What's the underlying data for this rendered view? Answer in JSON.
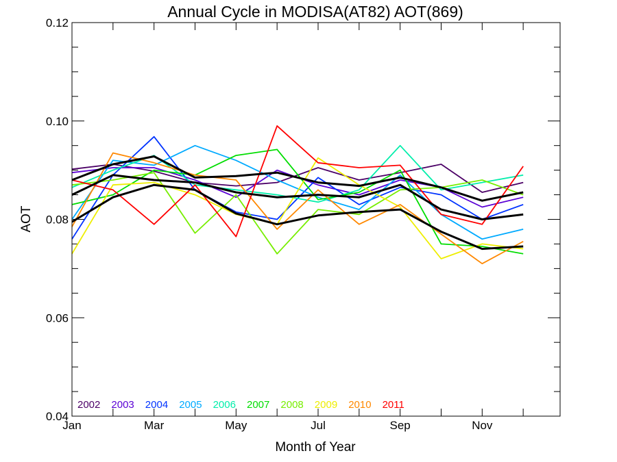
{
  "chart_data": {
    "type": "line",
    "title": "Annual Cycle in MODISA(AT82) AOT(869)",
    "xlabel": "Month of Year",
    "ylabel": "AOT",
    "xlim": [
      1,
      12.9
    ],
    "ylim": [
      0.04,
      0.12
    ],
    "x_tick_labels": [
      {
        "x": 1,
        "label": "Jan"
      },
      {
        "x": 3,
        "label": "Mar"
      },
      {
        "x": 5,
        "label": "May"
      },
      {
        "x": 7,
        "label": "Jul"
      },
      {
        "x": 9,
        "label": "Sep"
      },
      {
        "x": 11,
        "label": "Nov"
      }
    ],
    "y_ticks": [
      0.04,
      0.06,
      0.08,
      0.1,
      0.12
    ],
    "y_tick_labels": [
      "0.04",
      "0.06",
      "0.08",
      "0.10",
      "0.12"
    ],
    "x": [
      1,
      2,
      3,
      4,
      5,
      6,
      7,
      8,
      9,
      10,
      11,
      12
    ],
    "legend_placement": "bottom-left",
    "series": [
      {
        "name": "2002",
        "color": "#4b0066",
        "values": [
          0.0902,
          0.0912,
          0.0898,
          0.0875,
          0.0868,
          0.0875,
          0.0905,
          0.088,
          0.0895,
          0.0912,
          0.0855,
          0.0875
        ]
      },
      {
        "name": "2003",
        "color": "#5a00d4",
        "values": [
          0.0895,
          0.0905,
          0.0905,
          0.088,
          0.0845,
          0.09,
          0.087,
          0.085,
          0.088,
          0.0865,
          0.0825,
          0.0845
        ]
      },
      {
        "name": "2004",
        "color": "#0033ff",
        "values": [
          0.076,
          0.089,
          0.0968,
          0.086,
          0.0815,
          0.08,
          0.0885,
          0.083,
          0.0865,
          0.085,
          0.08,
          0.083
        ]
      },
      {
        "name": "2005",
        "color": "#00aaff",
        "values": [
          0.08,
          0.092,
          0.091,
          0.095,
          0.092,
          0.088,
          0.0845,
          0.082,
          0.089,
          0.081,
          0.076,
          0.078
        ]
      },
      {
        "name": "2006",
        "color": "#00eeaa",
        "values": [
          0.0865,
          0.09,
          0.093,
          0.087,
          0.086,
          0.085,
          0.0835,
          0.086,
          0.095,
          0.086,
          0.0875,
          0.089
        ]
      },
      {
        "name": "2007",
        "color": "#00dd00",
        "values": [
          0.083,
          0.085,
          0.09,
          0.089,
          0.093,
          0.0942,
          0.084,
          0.0855,
          0.09,
          0.075,
          0.0745,
          0.073
        ]
      },
      {
        "name": "2008",
        "color": "#77ee00",
        "values": [
          0.087,
          0.088,
          0.0895,
          0.0772,
          0.085,
          0.073,
          0.082,
          0.081,
          0.086,
          0.0865,
          0.088,
          0.085
        ]
      },
      {
        "name": "2009",
        "color": "#eeee00",
        "values": [
          0.073,
          0.087,
          0.0875,
          0.085,
          0.081,
          0.079,
          0.0925,
          0.087,
          0.0825,
          0.072,
          0.075,
          0.074
        ]
      },
      {
        "name": "2010",
        "color": "#ff8800",
        "values": [
          0.0785,
          0.0935,
          0.0915,
          0.089,
          0.088,
          0.078,
          0.086,
          0.079,
          0.083,
          0.077,
          0.071,
          0.0755
        ]
      },
      {
        "name": "2011",
        "color": "#ff0000",
        "values": [
          0.088,
          0.086,
          0.079,
          0.087,
          0.0765,
          0.099,
          0.0915,
          0.0905,
          0.091,
          0.081,
          0.079,
          0.0908
        ]
      },
      {
        "name": "",
        "color": "#000000",
        "values": [
          0.0795,
          0.0845,
          0.087,
          0.086,
          0.0812,
          0.079,
          0.0808,
          0.0815,
          0.082,
          0.0775,
          0.074,
          0.0745
        ]
      },
      {
        "name": "",
        "color": "#000000",
        "values": [
          0.085,
          0.089,
          0.088,
          0.0875,
          0.0855,
          0.0845,
          0.085,
          0.0845,
          0.087,
          0.082,
          0.08,
          0.081
        ]
      },
      {
        "name": "",
        "color": "#000000",
        "values": [
          0.088,
          0.0912,
          0.0928,
          0.0885,
          0.0888,
          0.0895,
          0.0875,
          0.0868,
          0.0885,
          0.0865,
          0.0838,
          0.0855
        ]
      }
    ]
  }
}
